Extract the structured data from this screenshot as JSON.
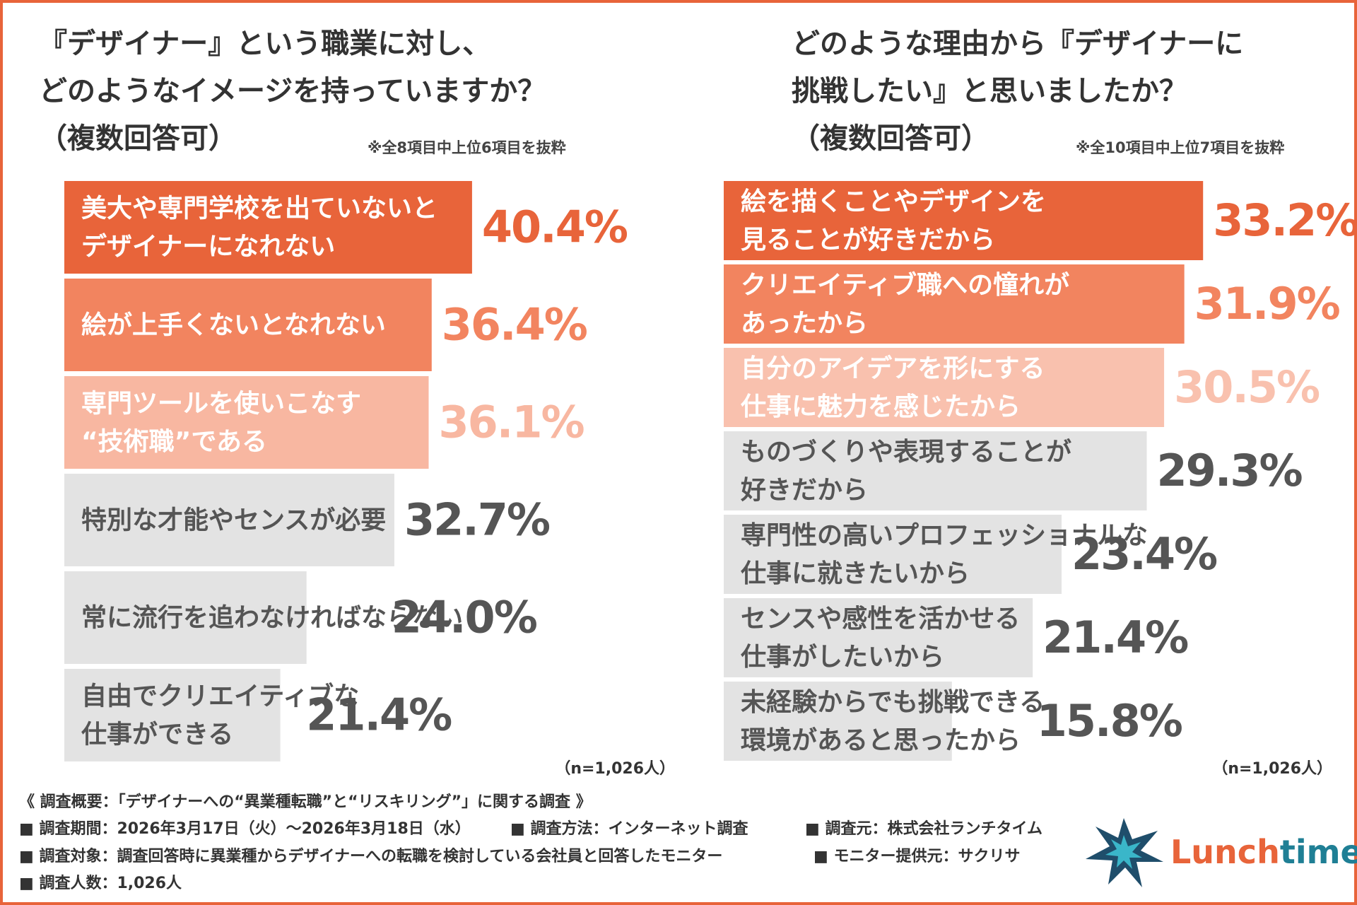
{
  "chart_data": [
    {
      "type": "hbar",
      "title": "『デザイナー』という職業に対し、\nどのようなイメージを持っていますか？\n（複数回答可）",
      "note": "※全8項目中上位6項目を抜粋",
      "categories": [
        "美大や専門学校を出ていないと\nデザイナーになれない",
        "絵が上手くないとなれない",
        "専門ツールを使いこなす\n“技術職”である",
        "特別な才能やセンスが必要",
        "常に流行を追わなければならない",
        "自由でクリエイティブな\n仕事ができる"
      ],
      "values": [
        40.4,
        36.4,
        36.1,
        32.7,
        24.0,
        21.4
      ],
      "value_labels": [
        "40.4%",
        "36.4%",
        "36.1%",
        "32.7%",
        "24.0%",
        "21.4%"
      ],
      "colors": [
        "#e8643a",
        "#f2845f",
        "#f8b7a1",
        "#e3e3e3",
        "#e3e3e3",
        "#e3e3e3"
      ],
      "label_colors": [
        "#e8643a",
        "#f2845f",
        "#f8b7a1",
        "#555555",
        "#555555",
        "#555555"
      ],
      "xlim": [
        0,
        50
      ],
      "sample": "（n=1,026人）"
    },
    {
      "type": "hbar",
      "title": "どのような理由から『デザイナーに\n挑戦したい』と思いましたか？\n（複数回答可）",
      "note": "※全10項目中上位7項目を抜粋",
      "categories": [
        "絵を描くことやデザインを\n見ることが好きだから",
        "クリエイティブ職への憧れが\nあったから",
        "自分のアイデアを形にする\n仕事に魅力を感じたから",
        "ものづくりや表現することが\n好きだから",
        "専門性の高いプロフェッショナルな\n仕事に就きたいから",
        "センスや感性を活かせる\n仕事がしたいから",
        "未経験からでも挑戦できる\n環境があると思ったから"
      ],
      "values": [
        33.2,
        31.9,
        30.5,
        29.3,
        23.4,
        21.4,
        15.8
      ],
      "value_labels": [
        "33.2%",
        "31.9%",
        "30.5%",
        "29.3%",
        "23.4%",
        "21.4%",
        "15.8%"
      ],
      "colors": [
        "#e8643a",
        "#f2845f",
        "#f9c1ae",
        "#e3e3e3",
        "#e3e3e3",
        "#e3e3e3",
        "#e3e3e3"
      ],
      "label_colors": [
        "#e8643a",
        "#f2845f",
        "#f9c1ae",
        "#555555",
        "#555555",
        "#555555",
        "#555555"
      ],
      "xlim": [
        0,
        35
      ],
      "sample": "（n=1,026人）"
    }
  ],
  "footer": {
    "heading": "《 調査概要：「デザイナーへの“異業種転職”と“リスキリング”」に関する調査 》",
    "items": [
      "■ 調査期間：2026年3月17日（火）～2026年3月18日（水）",
      "■ 調査方法：インターネット調査",
      "■ 調査元：株式会社ランチタイム",
      "■ 調査対象：調査回答時に異業種からデザイナーへの転職を検討している会社員と回答したモニター",
      "■ モニター提供元：サクリサ",
      "■ 調査人数：1,026人"
    ]
  },
  "logo": [
    "Lunch",
    "time"
  ]
}
